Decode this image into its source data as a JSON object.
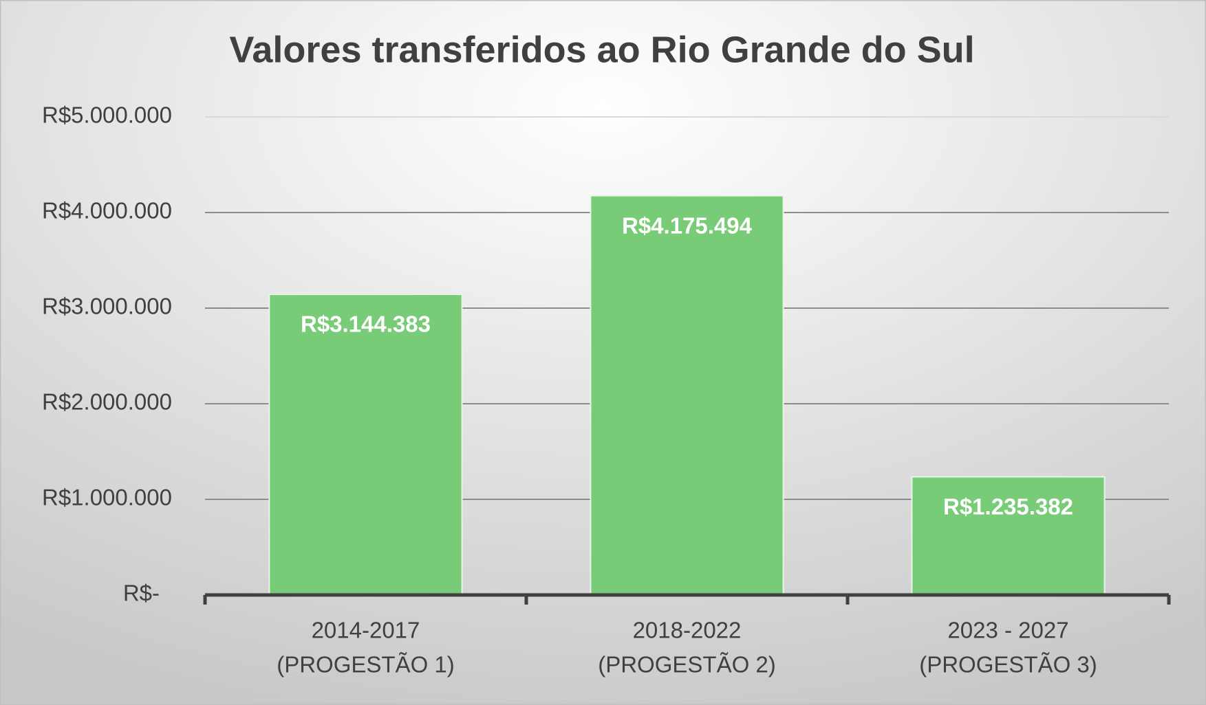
{
  "chart_data": {
    "type": "bar",
    "title": "Valores transferidos ao Rio Grande do Sul",
    "categories": [
      [
        "2014-2017",
        "(PROGESTÃO 1)"
      ],
      [
        "2018-2022",
        "(PROGESTÃO 2)"
      ],
      [
        "2023 - 2027",
        "(PROGESTÃO 3)"
      ]
    ],
    "values": [
      3144383,
      4175494,
      1235382
    ],
    "value_labels": [
      "R$3.144.383",
      "R$4.175.494",
      "R$1.235.382"
    ],
    "color": "#78cc78",
    "ylim": [
      0,
      5000000
    ],
    "yticks": [
      {
        "value": 0,
        "label": "R$-"
      },
      {
        "value": 1000000,
        "label": "R$1.000.000"
      },
      {
        "value": 2000000,
        "label": "R$2.000.000"
      },
      {
        "value": 3000000,
        "label": "R$3.000.000"
      },
      {
        "value": 4000000,
        "label": "R$4.000.000"
      },
      {
        "value": 5000000,
        "label": "R$5.000.000"
      }
    ],
    "grid": true
  }
}
